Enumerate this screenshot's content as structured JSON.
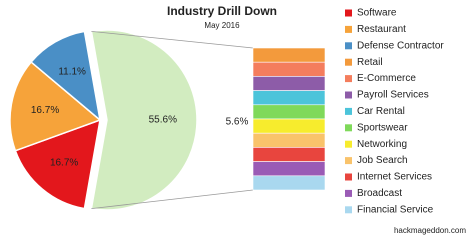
{
  "chart_data": {
    "type": "bar-of-pie",
    "title": "Industry Drill Down",
    "subtitle": "May 2016",
    "credit": "hackmageddon.com",
    "pie": {
      "categories": [
        "Software",
        "Restaurant",
        "Defense Contractor",
        null
      ],
      "values": [
        16.7,
        16.7,
        11.1,
        55.6
      ],
      "value_labels": [
        "16.7%",
        "16.7%",
        "11.1%",
        "55.6%"
      ],
      "colors": [
        "#e3171c",
        "#f6a33a",
        "#4a8fc6",
        "#d2ecc0"
      ]
    },
    "bar": {
      "categories": [
        "Retail",
        "E-Commerce",
        "Payroll Services",
        "Car Rental",
        "Sportswear",
        "Networking",
        "Job Search",
        "Internet Services",
        "Broadcast",
        "Financial Service"
      ],
      "values": [
        5.6,
        5.6,
        5.6,
        5.6,
        5.6,
        5.6,
        5.6,
        5.6,
        5.6,
        5.6
      ],
      "value_label": "5.6%",
      "colors": [
        "#f39a3c",
        "#f47d5d",
        "#8d5ca8",
        "#4cc4da",
        "#7fd95a",
        "#f7ec2d",
        "#f9c36b",
        "#e8453e",
        "#9a5bb5",
        "#a9d8ef"
      ]
    }
  }
}
